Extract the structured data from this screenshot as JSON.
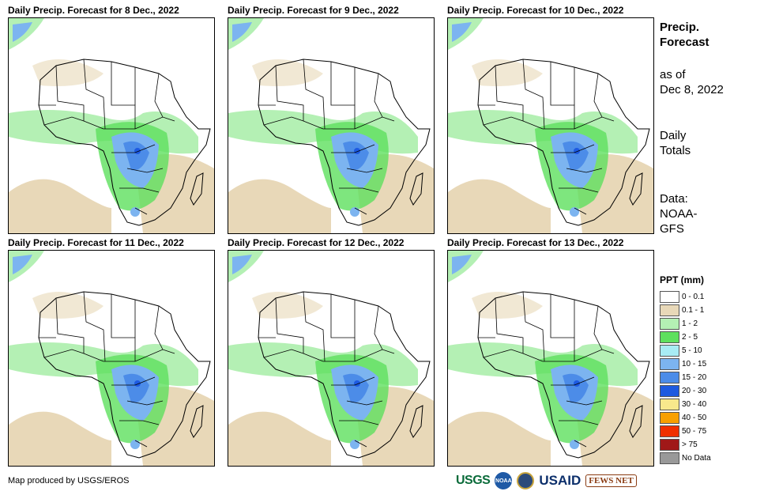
{
  "panels": [
    {
      "title": "Daily Precip. Forecast for 8 Dec., 2022"
    },
    {
      "title": "Daily Precip. Forecast for 9 Dec., 2022"
    },
    {
      "title": "Daily Precip. Forecast for 10 Dec., 2022"
    },
    {
      "title": "Daily Precip. Forecast for 11 Dec., 2022"
    },
    {
      "title": "Daily Precip. Forecast for 12 Dec., 2022"
    },
    {
      "title": "Daily Precip. Forecast for 13 Dec., 2022"
    }
  ],
  "side": {
    "title_line1": "Precip.",
    "title_line2": "Forecast",
    "asof_line1": "as of",
    "asof_line2": "Dec 8, 2022",
    "totals_line1": "Daily",
    "totals_line2": "Totals",
    "data_line1": "Data:",
    "data_line2": "NOAA-",
    "data_line3": "GFS"
  },
  "legend": {
    "title": "PPT (mm)",
    "items": [
      {
        "label": "0 - 0.1",
        "color": "#ffffff"
      },
      {
        "label": "0.1 - 1",
        "color": "#e8d8b8"
      },
      {
        "label": "1 - 2",
        "color": "#b4f0b4"
      },
      {
        "label": "2 - 5",
        "color": "#5ee05e"
      },
      {
        "label": "5 - 10",
        "color": "#a8ecf4"
      },
      {
        "label": "10 - 15",
        "color": "#7cb4f0"
      },
      {
        "label": "15 - 20",
        "color": "#4c8ce8"
      },
      {
        "label": "20 - 30",
        "color": "#1e5ae0"
      },
      {
        "label": "30 - 40",
        "color": "#f8e88c"
      },
      {
        "label": "40 - 50",
        "color": "#f8a000"
      },
      {
        "label": "50 - 75",
        "color": "#f03000"
      },
      {
        "label": "> 75",
        "color": "#a01818"
      },
      {
        "label": "No Data",
        "color": "#999999"
      }
    ]
  },
  "credit": "Map produced by USGS/EROS",
  "logos": {
    "usgs": "USGS",
    "noaa": "NOAA",
    "usaid": "USAID",
    "fews": "FEWS NET"
  }
}
